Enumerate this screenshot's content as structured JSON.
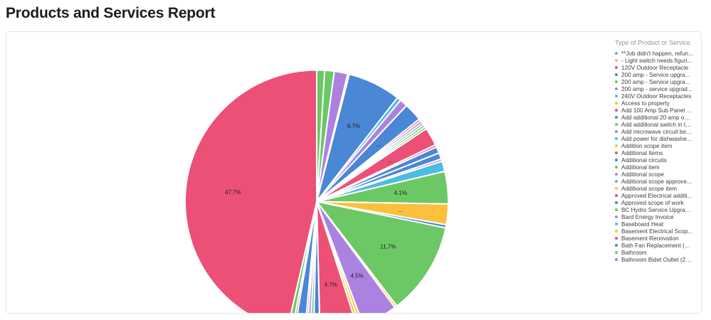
{
  "page": {
    "title": "Products and Services Report"
  },
  "chart_data": {
    "type": "pie",
    "legend_title": "Type of Product or Service",
    "legend_placement": "right",
    "slices": [
      {
        "name": "Bathroom",
        "value": 1.0,
        "color": "#6cc864",
        "label": ""
      },
      {
        "name": "Additional item",
        "value": 1.2,
        "color": "#6cc864",
        "label": ""
      },
      {
        "name": "Bathroom Bidet Outlet (20...",
        "value": 1.7,
        "color": "#ab82e0",
        "label": ""
      },
      {
        "name": "120V Outdoor Receptacle",
        "value": 0.2,
        "color": "#ec5076",
        "label": ""
      },
      {
        "name": "Bath Fan Replacement (20...",
        "value": 6.7,
        "color": "#4a87d4",
        "label": "6.7%"
      },
      {
        "name": "Baseboard Heat",
        "value": 0.5,
        "color": "#4cbce0",
        "label": ""
      },
      {
        "name": "200 amp - service upgrad...",
        "value": 1.0,
        "color": "#ab82e0",
        "label": ""
      },
      {
        "name": "Add 100 Amp Sub Panel (...",
        "value": 2.3,
        "color": "#4a87d4",
        "label": "..."
      },
      {
        "name": "Add microwave circuit bes...",
        "value": 0.3,
        "color": "#ab82e0",
        "label": ""
      },
      {
        "name": "Approved Electrical additi...",
        "value": 0.3,
        "color": "#ec5076",
        "label": ""
      },
      {
        "name": "Additional scope approve...",
        "value": 0.3,
        "color": "#4cbce0",
        "label": ""
      },
      {
        "name": "Add additional switch in to...",
        "value": 0.3,
        "color": "#6cc864",
        "label": ""
      },
      {
        "name": "BC Hydro Service Upgrad...",
        "value": 0.3,
        "color": "#6cc864",
        "label": ""
      },
      {
        "name": "Basement Renovation",
        "value": 2.3,
        "color": "#ec5076",
        "label": "..."
      },
      {
        "name": "Additional Items",
        "value": 0.3,
        "color": "#ec5076",
        "label": ""
      },
      {
        "name": "Approved scope of work",
        "value": 0.8,
        "color": "#4a87d4",
        "label": ""
      },
      {
        "name": "Additional circuits",
        "value": 0.8,
        "color": "#4a87d4",
        "label": ""
      },
      {
        "name": "Bard Energy Invoice",
        "value": 0.3,
        "color": "#ab82e0",
        "label": ""
      },
      {
        "name": "Add power for dishwasher ...",
        "value": 1.3,
        "color": "#4cbce0",
        "label": ""
      },
      {
        "name": "200 amp - Service upgra...",
        "value": 4.1,
        "color": "#6cc864",
        "label": "4.1%"
      },
      {
        "name": "Basement Electrical Scop...",
        "value": 2.6,
        "color": "#fbc13c",
        "label": "..."
      },
      {
        "name": "Add additional 20 amp out...",
        "value": 0.4,
        "color": "#4a87d4",
        "label": ""
      },
      {
        "name": "Additional scope",
        "value": 11.7,
        "color": "#6cc864",
        "label": "11.7%"
      },
      {
        "name": "Addition scope item",
        "value": 0.3,
        "color": "#fbc13c",
        "label": ""
      },
      {
        "name": "200 amp - Service upgra...",
        "value": 4.5,
        "color": "#ab82e0",
        "label": "4.5%"
      },
      {
        "name": "Access to property",
        "value": 0.4,
        "color": "#fbc13c",
        "label": ""
      },
      {
        "name": "Additional scope item",
        "value": 0.4,
        "color": "#fbc13c",
        "label": ""
      },
      {
        "name": "120V Outdoor Receptacle",
        "value": 4.7,
        "color": "#ec5076",
        "label": "4.7%"
      },
      {
        "name": "Approved scope of work",
        "value": 0.8,
        "color": "#4a87d4",
        "label": ""
      },
      {
        "name": "Bathroom",
        "value": 0.4,
        "color": "#6cc864",
        "label": ""
      },
      {
        "name": "Bathroom Bidet Outlet (20...",
        "value": 0.4,
        "color": "#ab82e0",
        "label": ""
      },
      {
        "name": "Add microwave circuit bes...",
        "value": 0.3,
        "color": "#ab82e0",
        "label": ""
      },
      {
        "name": "Additional circuits",
        "value": 1.3,
        "color": "#4a87d4",
        "label": ""
      },
      {
        "name": "Bard Energy Invoice",
        "value": 0.3,
        "color": "#ec5076",
        "label": ""
      },
      {
        "name": "BC Hydro Service Upgrad...",
        "value": 0.6,
        "color": "#6cc864",
        "label": ""
      },
      {
        "name": "**Job didn't happen, refun...",
        "value": 47.7,
        "color": "#ec5076",
        "label": "47.7%"
      }
    ]
  },
  "legend": [
    {
      "label": "**Job didn't happen, refun...",
      "color": "#4cbce0"
    },
    {
      "label": "- Light switch needs figuri...",
      "color": "#fbc13c"
    },
    {
      "label": "120V Outdoor Receptacle",
      "color": "#ec5076"
    },
    {
      "label": "200 amp - Service upgra...",
      "color": "#4a87d4"
    },
    {
      "label": "200 amp - Service upgra...",
      "color": "#6cc864"
    },
    {
      "label": "200 amp - service upgrad...",
      "color": "#ab82e0"
    },
    {
      "label": "240V Outdoor Receptacles",
      "color": "#4cbce0"
    },
    {
      "label": "Access to property",
      "color": "#fbc13c"
    },
    {
      "label": "Add 100 Amp Sub Panel (...",
      "color": "#ec5076"
    },
    {
      "label": "Add additional 20 amp out...",
      "color": "#4a87d4"
    },
    {
      "label": "Add additional switch in to...",
      "color": "#6cc864"
    },
    {
      "label": "Add microwave circuit bes...",
      "color": "#ab82e0"
    },
    {
      "label": "Add power for dishwasher ...",
      "color": "#4cbce0"
    },
    {
      "label": "Addition scope item",
      "color": "#fbc13c"
    },
    {
      "label": "Additional Items",
      "color": "#ec5076"
    },
    {
      "label": "Additional circuits",
      "color": "#4a87d4"
    },
    {
      "label": "Additional item",
      "color": "#6cc864"
    },
    {
      "label": "Additional scope",
      "color": "#ab82e0"
    },
    {
      "label": "Additional scope approve...",
      "color": "#4cbce0"
    },
    {
      "label": "Additional scope item",
      "color": "#fbc13c"
    },
    {
      "label": "Approved Electrical additi...",
      "color": "#ec5076"
    },
    {
      "label": "Approved scope of work",
      "color": "#4a87d4"
    },
    {
      "label": "BC Hydro Service Upgrad...",
      "color": "#6cc864"
    },
    {
      "label": "Bard Energy Invoice",
      "color": "#ab82e0"
    },
    {
      "label": "Baseboard Heat",
      "color": "#4cbce0"
    },
    {
      "label": "Basement Electrical Scop...",
      "color": "#fbc13c"
    },
    {
      "label": "Basement Renovation",
      "color": "#ec5076"
    },
    {
      "label": "Bath Fan Replacement (20...",
      "color": "#4a87d4"
    },
    {
      "label": "Bathroom",
      "color": "#6cc864"
    },
    {
      "label": "Bathroom Bidet Outlet (20...",
      "color": "#ab82e0"
    }
  ]
}
